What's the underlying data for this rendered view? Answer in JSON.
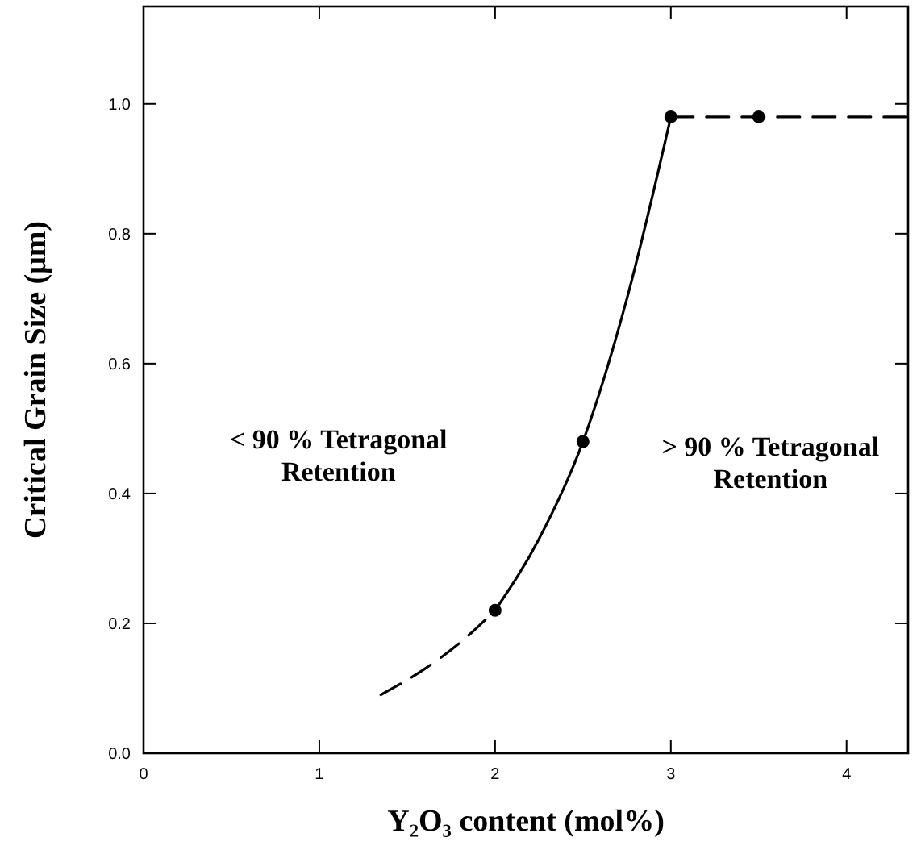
{
  "chart_data": {
    "type": "line",
    "xlabel": "Y₂O₃ content (mol%)",
    "ylabel": "Critical Grain Size (μm)",
    "xlim": [
      0,
      4.35
    ],
    "ylim": [
      0,
      1.15
    ],
    "xticks": [
      0,
      1,
      2,
      3,
      4
    ],
    "yticks": [
      {
        "value": 0,
        "label": "0.0"
      },
      0.2,
      0.4,
      0.6,
      0.8,
      {
        "value": 1,
        "label": "1.0"
      }
    ],
    "grid": false,
    "series": [
      {
        "color": "#000000",
        "line_style": "dashed",
        "marker": "none",
        "x": [
          1.35,
          1.6,
          1.8,
          2
        ],
        "values": [
          0.09,
          0.13,
          0.17,
          0.22
        ]
      },
      {
        "color": "#000000",
        "line_style": "solid",
        "marker": "none",
        "x": [
          2,
          2.25,
          2.5,
          2.75,
          3
        ],
        "values": [
          0.22,
          0.33,
          0.48,
          0.7,
          0.98
        ]
      },
      {
        "color": "#000000",
        "line_style": "dashed",
        "marker": "none",
        "x": [
          3,
          3.5,
          4.35
        ],
        "values": [
          0.98,
          0.98,
          0.98
        ]
      },
      {
        "type": "scatter",
        "color": "#000000",
        "marker": "circle",
        "x": [
          2,
          2.5,
          3,
          3.5
        ],
        "values": [
          0.22,
          0.48,
          0.98,
          0.98
        ]
      }
    ],
    "annotations": [
      "< 90 % Tetragonal\nRetention",
      "> 90 % Tetragonal\nRetention"
    ]
  }
}
